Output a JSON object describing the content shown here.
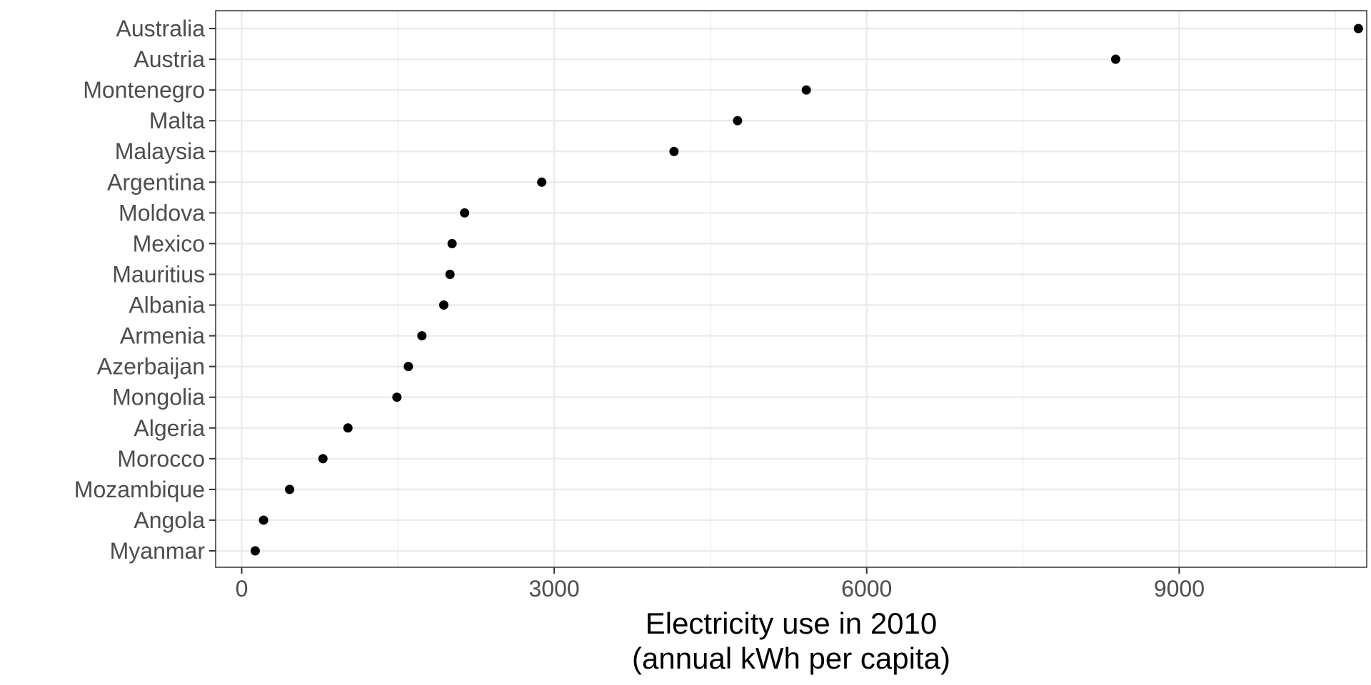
{
  "chart_data": {
    "type": "scatter",
    "title": "",
    "xlabel": [
      "Electricity use in 2010",
      "(annual kWh per capita)"
    ],
    "ylabel": "",
    "xlim": [
      -250,
      10800
    ],
    "xticks": [
      0,
      3000,
      6000,
      9000
    ],
    "xtick_labels": [
      "0",
      "3000",
      "6000",
      "9000"
    ],
    "grid": true,
    "categories": [
      "Australia",
      "Austria",
      "Montenegro",
      "Malta",
      "Malaysia",
      "Argentina",
      "Moldova",
      "Mexico",
      "Mauritius",
      "Albania",
      "Armenia",
      "Azerbaijan",
      "Mongolia",
      "Algeria",
      "Morocco",
      "Mozambique",
      "Angola",
      "Myanmar"
    ],
    "values": [
      10720,
      8390,
      5420,
      4760,
      4150,
      2880,
      2140,
      2020,
      2000,
      1940,
      1730,
      1600,
      1490,
      1020,
      780,
      460,
      210,
      130
    ],
    "point_color": "#000000",
    "grid_color": "#ebebeb",
    "axis_text_color": "#4d4d4d"
  }
}
